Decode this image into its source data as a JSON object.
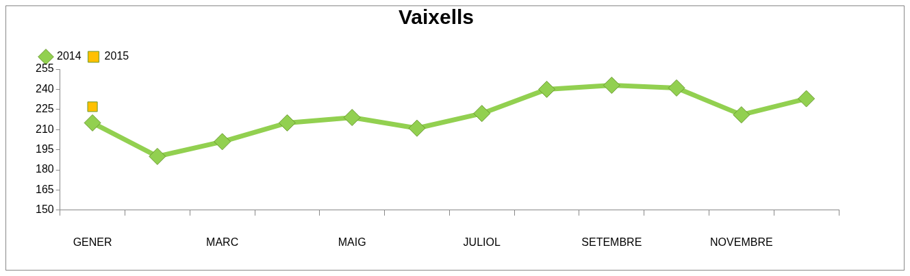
{
  "chart_data": {
    "type": "line",
    "title": "Vaixells",
    "categories": [
      "GENER",
      null,
      "MARC",
      null,
      "MAIG",
      null,
      "JULIOL",
      null,
      "SETEMBRE",
      null,
      "NOVEMBRE",
      null
    ],
    "series": [
      {
        "name": "2014",
        "color": "#92d050",
        "marker": "diamond",
        "values": [
          215,
          190,
          201,
          215,
          219,
          211,
          222,
          240,
          243,
          241,
          221,
          233
        ]
      },
      {
        "name": "2015",
        "color": "#ffc000",
        "marker": "square",
        "values": [
          227,
          null,
          null,
          null,
          null,
          null,
          null,
          null,
          null,
          null,
          null,
          null
        ]
      }
    ],
    "ylim": [
      150,
      255
    ],
    "yticks": [
      150,
      165,
      180,
      195,
      210,
      225,
      240,
      255
    ],
    "grid": false,
    "legend": "top left"
  }
}
